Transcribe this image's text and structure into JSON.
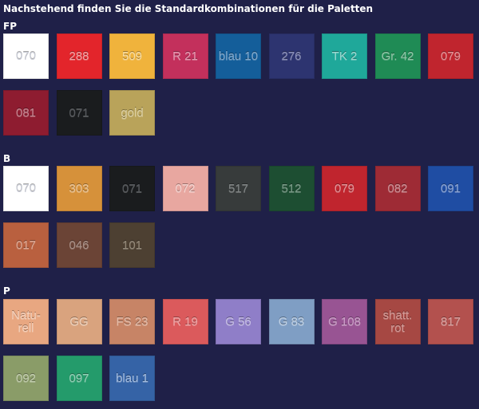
{
  "heading": "Nachstehend finden Sie die Standardkombinationen für die Paletten",
  "sections": [
    {
      "label": "FP",
      "swatches": [
        {
          "code": "070",
          "color": "#ffffff",
          "text_color": "#c9ccd6"
        },
        {
          "code": "288",
          "color": "#e3252b",
          "text_color": "#f4a0a2"
        },
        {
          "code": "509",
          "color": "#f0b33c",
          "text_color": "#f7dca2"
        },
        {
          "code": "R 21",
          "color": "#c3305c",
          "text_color": "#e697b0"
        },
        {
          "code": "blau 10",
          "color": "#145e9a",
          "text_color": "#7fa7cc"
        },
        {
          "code": "276",
          "color": "#2d3470",
          "text_color": "#8b90bb"
        },
        {
          "code": "TK 2",
          "color": "#1fa89a",
          "text_color": "#9bd8d0"
        },
        {
          "code": "Gr. 42",
          "color": "#1f8b55",
          "text_color": "#8fc6a6"
        },
        {
          "code": "079",
          "color": "#c0252e",
          "text_color": "#e49296"
        },
        {
          "code": "081",
          "color": "#8e1c30",
          "text_color": "#c7838f"
        },
        {
          "code": "071",
          "color": "#1a1c1e",
          "text_color": "#55585c"
        },
        {
          "code": "gold",
          "color": "#b9a35a",
          "text_color": "#ddd0a0"
        }
      ]
    },
    {
      "label": "B",
      "swatches": [
        {
          "code": "070",
          "color": "#ffffff",
          "text_color": "#c9ccd6"
        },
        {
          "code": "303",
          "color": "#d6913a",
          "text_color": "#ecc595"
        },
        {
          "code": "071",
          "color": "#1a1c1e",
          "text_color": "#55585c"
        },
        {
          "code": "072",
          "color": "#e8a7a0",
          "text_color": "#f6d3cf"
        },
        {
          "code": "517",
          "color": "#373b3b",
          "text_color": "#7e8383"
        },
        {
          "code": "512",
          "color": "#1d4e32",
          "text_color": "#789a86"
        },
        {
          "code": "079",
          "color": "#c0252e",
          "text_color": "#e49296"
        },
        {
          "code": "082",
          "color": "#9e2b35",
          "text_color": "#cf8e94"
        },
        {
          "code": "091",
          "color": "#1f4da3",
          "text_color": "#8ba5d6"
        },
        {
          "code": "017",
          "color": "#b9603f",
          "text_color": "#dca692"
        },
        {
          "code": "046",
          "color": "#6b4436",
          "text_color": "#a98f85"
        },
        {
          "code": "101",
          "color": "#4d4032",
          "text_color": "#938776"
        }
      ]
    },
    {
      "label": "P",
      "swatches": [
        {
          "code": "Natu- rell",
          "color": "#e8a781",
          "text_color": "#f6d1bb"
        },
        {
          "code": "GG",
          "color": "#d9a37e",
          "text_color": "#eed0b9"
        },
        {
          "code": "FS 23",
          "color": "#c78466",
          "text_color": "#e6bba7"
        },
        {
          "code": "R 19",
          "color": "#db5a5c",
          "text_color": "#f0a4a5"
        },
        {
          "code": "G 56",
          "color": "#8f7ec8",
          "text_color": "#c6bde6"
        },
        {
          "code": "G 83",
          "color": "#7f9ec4",
          "text_color": "#bfd0e4"
        },
        {
          "code": "G 108",
          "color": "#985493",
          "text_color": "#cc9ec8"
        },
        {
          "code": "shatt. rot",
          "color": "#a64843",
          "text_color": "#d49995"
        },
        {
          "code": "817",
          "color": "#b3514e",
          "text_color": "#daa19f"
        },
        {
          "code": "092",
          "color": "#8a9c68",
          "text_color": "#c2cdad"
        },
        {
          "code": "097",
          "color": "#249b6b",
          "text_color": "#94d0b6"
        },
        {
          "code": "blau 1",
          "color": "#3563a6",
          "text_color": "#a4bde0"
        }
      ]
    }
  ]
}
